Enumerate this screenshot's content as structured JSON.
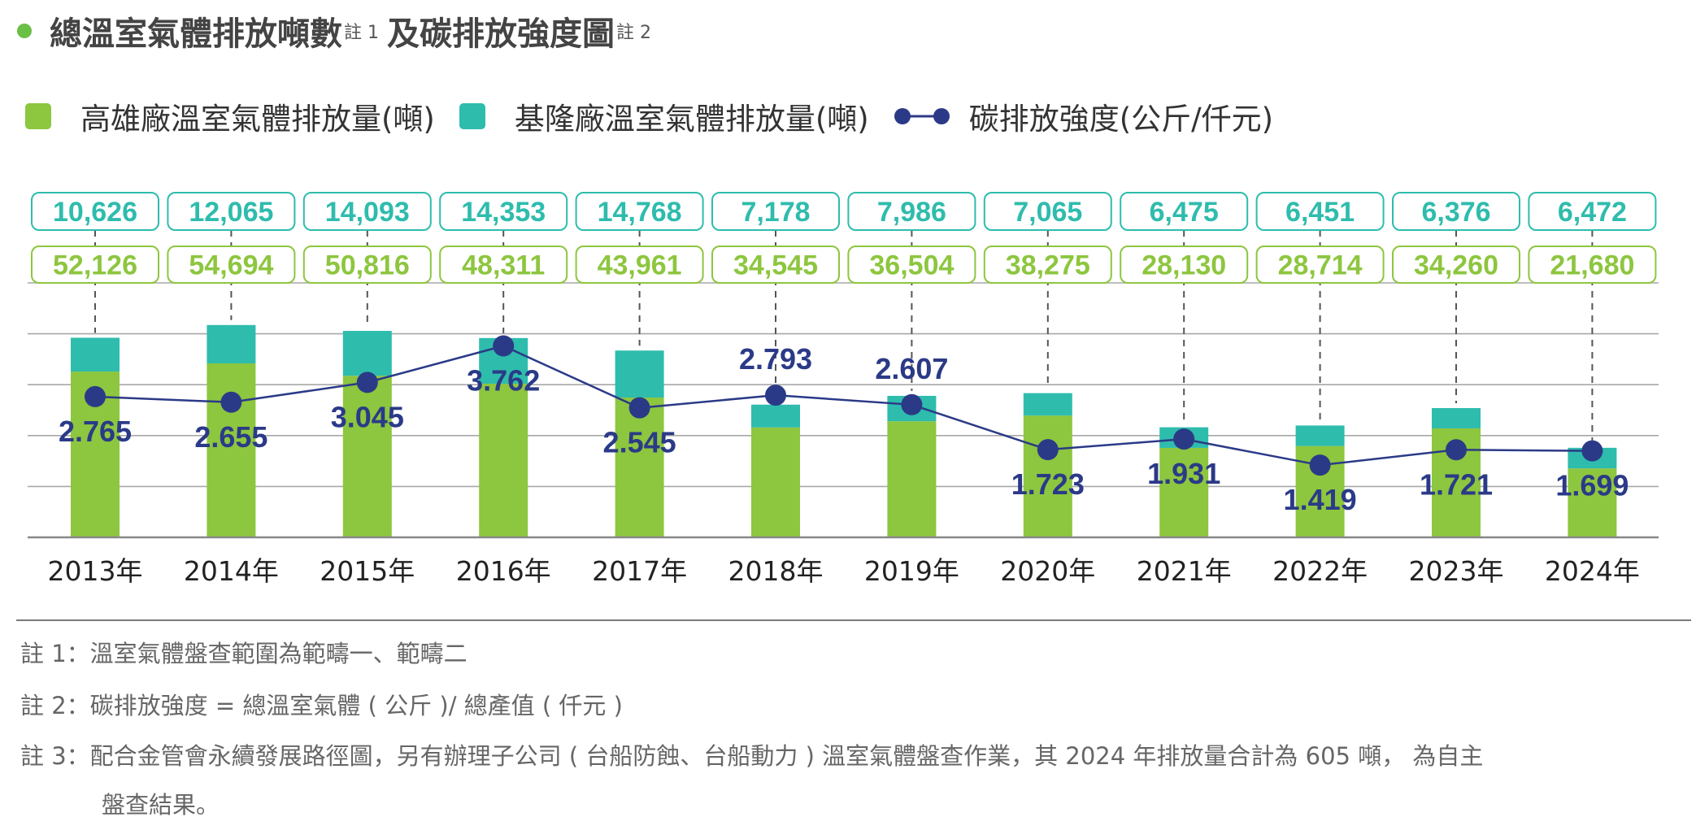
{
  "title": {
    "part1": "總溫室氣體排放噸數",
    "sup1": "註 1",
    "part2": "及碳排放強度圖",
    "sup2": "註 2"
  },
  "legend": [
    {
      "label": "高雄廠溫室氣體排放量(噸)",
      "color": "#8dc63f",
      "icon": "square-swatch"
    },
    {
      "label": "基隆廠溫室氣體排放量(噸)",
      "color": "#2ebcad",
      "icon": "square-swatch"
    },
    {
      "label": "碳排放強度(公斤/仟元)",
      "color": "#2b3a87",
      "icon": "line-dot-icon"
    }
  ],
  "chart_data": {
    "type": "bar",
    "subtype": "stacked-bar-with-line",
    "title": "總溫室氣體排放噸數 及碳排放強度圖",
    "categories": [
      "2013年",
      "2014年",
      "2015年",
      "2016年",
      "2017年",
      "2018年",
      "2019年",
      "2020年",
      "2021年",
      "2022年",
      "2023年",
      "2024年"
    ],
    "series": [
      {
        "name": "高雄廠溫室氣體排放量(噸)",
        "type": "bar",
        "color": "#8dc63f",
        "values": [
          52126,
          54694,
          50816,
          48311,
          43961,
          34545,
          36504,
          38275,
          28130,
          28714,
          34260,
          21680
        ],
        "labels": [
          "52,126",
          "54,694",
          "50,816",
          "48,311",
          "43,961",
          "34,545",
          "36,504",
          "38,275",
          "28,130",
          "28,714",
          "34,260",
          "21,680"
        ]
      },
      {
        "name": "基隆廠溫室氣體排放量(噸)",
        "type": "bar",
        "color": "#2ebcad",
        "values": [
          10626,
          12065,
          14093,
          14353,
          14768,
          7178,
          7986,
          7065,
          6475,
          6451,
          6376,
          6472
        ],
        "labels": [
          "10,626",
          "12,065",
          "14,093",
          "14,353",
          "14,768",
          "7,178",
          "7,986",
          "7,065",
          "6,475",
          "6,451",
          "6,376",
          "6,472"
        ]
      },
      {
        "name": "碳排放強度(公斤/仟元)",
        "type": "line",
        "color": "#2b3a87",
        "values": [
          2.765,
          2.655,
          3.045,
          3.762,
          2.545,
          2.793,
          2.607,
          1.723,
          1.931,
          1.419,
          1.721,
          1.699
        ],
        "labels": [
          "2.765",
          "2.655",
          "3.045",
          "3.762",
          "2.545",
          "2.793",
          "2.607",
          "1.723",
          "1.931",
          "1.419",
          "1.721",
          "1.699"
        ],
        "label_position": [
          "below",
          "below",
          "below",
          "below",
          "below",
          "above",
          "above",
          "below",
          "below",
          "below",
          "below",
          "below"
        ]
      }
    ],
    "y_left": {
      "label": "",
      "range": [
        0,
        80000
      ],
      "tick_step": 16000,
      "ticks_shown": false
    },
    "y_right": {
      "label": "",
      "range": [
        0,
        5
      ],
      "tick_step": 1,
      "ticks_shown": false
    },
    "grid": true,
    "legend_position": "top-left",
    "xlabel": "",
    "ylabel": ""
  },
  "notes": {
    "note1": "註 1：溫室氣體盤查範圍為範疇一、範疇二",
    "note2": "註 2：碳排放強度 = 總溫室氣體 ( 公斤 )/ 總產值 ( 仟元 )",
    "note3": "註 3：配合金管會永續發展路徑圖，另有辦理子公司 ( 台船防蝕、台船動力 ) 溫室氣體盤查作業，其 2024 年排放量合計為 605 噸， 為自主",
    "note3_cont": "盤查結果。"
  }
}
